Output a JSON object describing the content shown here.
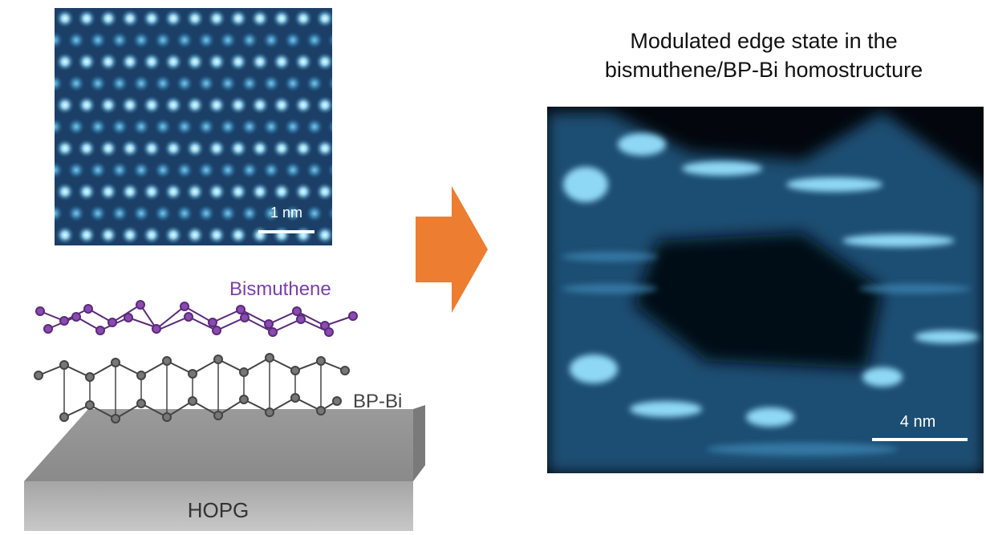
{
  "atomic_image": {
    "scale_bar": "1 nm"
  },
  "structure_model": {
    "top_layer": "Bismuthene",
    "middle_layer": "BP-Bi",
    "substrate": "HOPG"
  },
  "edge_state_image": {
    "title": [
      "Modulated edge state in the",
      "bismuthene/BP-Bi homostructure"
    ],
    "scale_bar": "4 nm"
  }
}
